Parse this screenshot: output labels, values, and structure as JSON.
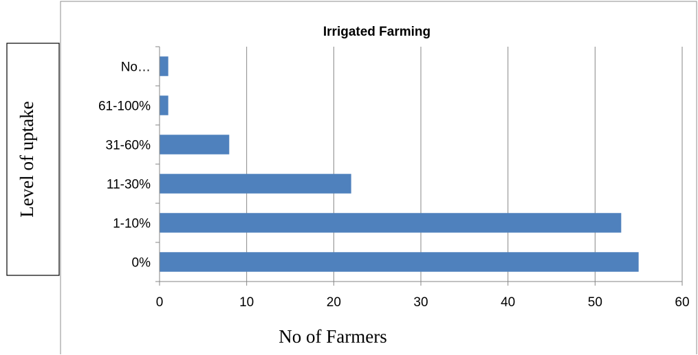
{
  "chart_data": {
    "type": "bar",
    "orientation": "horizontal",
    "title": "Irrigated Farming",
    "xlabel": "No of Farmers",
    "ylabel": "Level of uptake",
    "categories": [
      "0%",
      "1-10%",
      "11-30%",
      "31-60%",
      "61-100%",
      "No…"
    ],
    "values": [
      55,
      53,
      22,
      8,
      1,
      1
    ],
    "xlim": [
      0,
      60
    ],
    "xticks": [
      "0",
      "10",
      "20",
      "30",
      "40",
      "50",
      "60"
    ],
    "grid": "vertical",
    "legend": "none",
    "colors": {
      "bar": "#4f81bd",
      "grid": "#868686",
      "axis": "#868686"
    }
  }
}
